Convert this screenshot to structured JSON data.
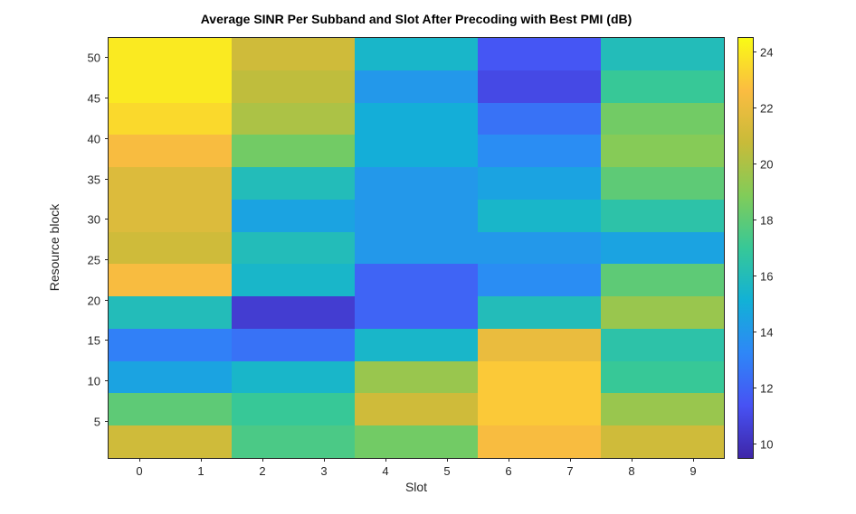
{
  "figure": {
    "background": "#ffffff",
    "axis_color": "#262626",
    "title_color": "#000000"
  },
  "chart_data": {
    "type": "heatmap",
    "title": "Average SINR Per Subband and Slot After Precoding with Best PMI (dB)",
    "xlabel": "Slot",
    "ylabel": "Resource block",
    "x_range": [
      -0.5,
      9.5
    ],
    "y_range": [
      0.5,
      52.5
    ],
    "x_ticks": [
      0,
      1,
      2,
      3,
      4,
      5,
      6,
      7,
      8,
      9
    ],
    "y_ticks": [
      5,
      10,
      15,
      20,
      25,
      30,
      35,
      40,
      45,
      50
    ],
    "column_slot_span": 2,
    "subband_rb_span": 4,
    "columns_slots": [
      "0-1",
      "2-3",
      "4-5",
      "6-7",
      "8-9"
    ],
    "rows_resource_blocks_bottom_to_top": [
      "1-4",
      "5-8",
      "9-12",
      "13-16",
      "17-20",
      "21-24",
      "25-28",
      "29-32",
      "33-36",
      "37-40",
      "41-44",
      "45-48",
      "49-52"
    ],
    "values_dB_rows_bottom_to_top": [
      [
        21.0,
        17.5,
        18.5,
        22.5,
        21.0
      ],
      [
        18.0,
        17.0,
        21.0,
        23.0,
        19.5
      ],
      [
        14.5,
        15.5,
        19.5,
        23.0,
        17.0
      ],
      [
        13.0,
        12.5,
        15.5,
        22.0,
        16.5
      ],
      [
        16.0,
        10.5,
        12.0,
        16.0,
        19.5
      ],
      [
        22.5,
        15.5,
        12.0,
        13.5,
        18.0
      ],
      [
        21.0,
        16.0,
        14.0,
        14.0,
        14.5
      ],
      [
        21.5,
        14.5,
        14.0,
        15.5,
        16.5
      ],
      [
        21.5,
        16.0,
        14.0,
        14.5,
        18.0
      ],
      [
        22.5,
        18.5,
        15.0,
        13.5,
        19.0
      ],
      [
        23.5,
        20.0,
        15.0,
        12.5,
        18.5
      ],
      [
        24.0,
        20.5,
        14.0,
        11.0,
        17.0
      ],
      [
        24.0,
        21.0,
        15.5,
        11.5,
        16.0
      ]
    ],
    "clim": [
      9.5,
      24.5
    ],
    "grid": false,
    "legend": "none",
    "colorbar": {
      "location": "right",
      "ticks": [
        10,
        12,
        14,
        16,
        18,
        20,
        22,
        24
      ]
    },
    "colormap": {
      "name": "parula",
      "stops": [
        "#3e26a8",
        "#4752f4",
        "#2e87f7",
        "#12b1d6",
        "#37c897",
        "#81cc59",
        "#c8bb39",
        "#fbbc41",
        "#f9fb15"
      ]
    }
  }
}
